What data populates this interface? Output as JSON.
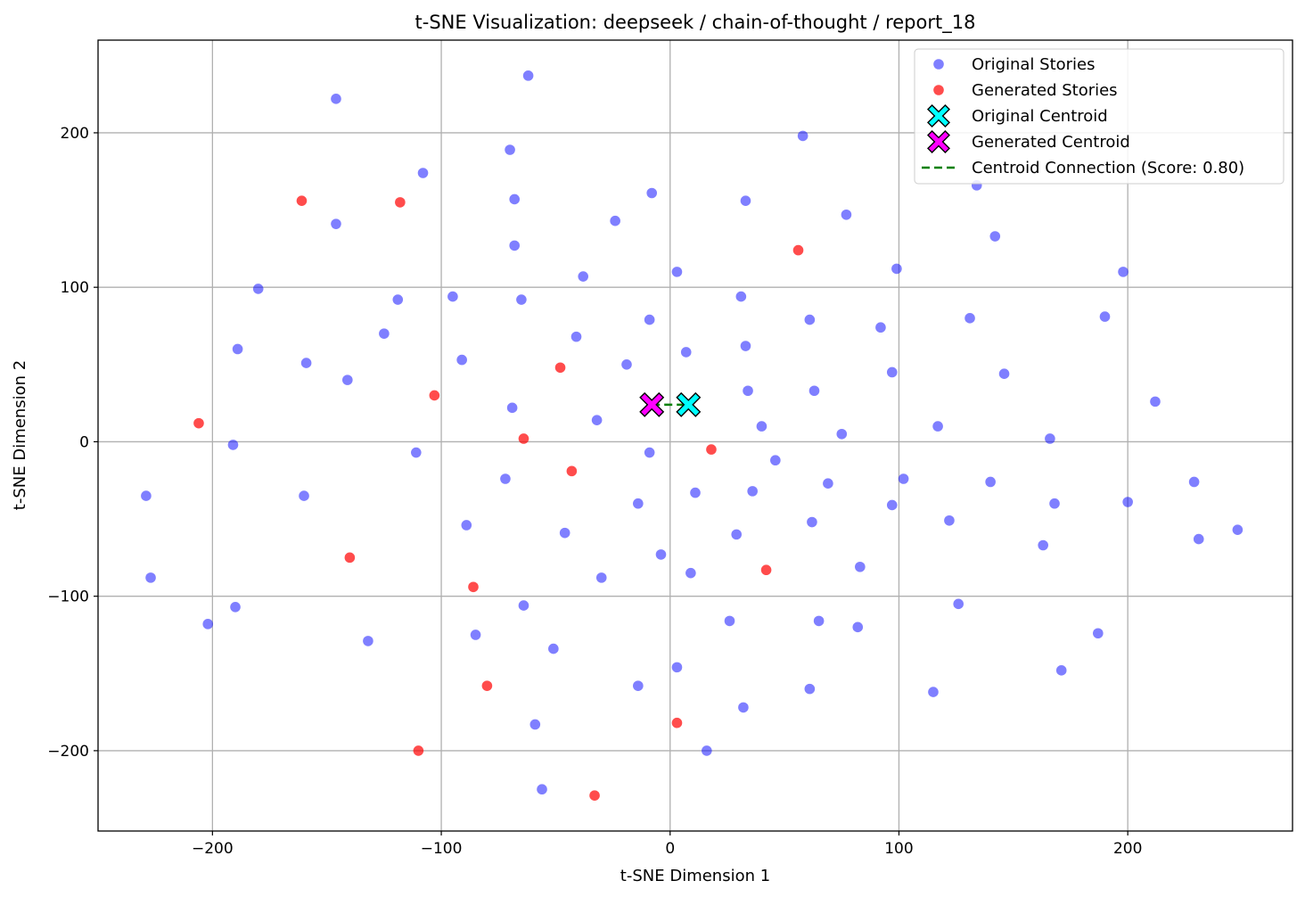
{
  "chart_data": {
    "type": "scatter",
    "title": "t-SNE Visualization: deepseek / chain-of-thought / report_18",
    "xlabel": "t-SNE Dimension 1",
    "ylabel": "t-SNE Dimension 2",
    "xlim": [
      -250,
      272
    ],
    "ylim": [
      -252,
      260
    ],
    "xticks": [
      -200,
      -100,
      0,
      100,
      200
    ],
    "yticks": [
      -200,
      -100,
      0,
      100,
      200
    ],
    "xtick_labels": [
      "−200",
      "−100",
      "0",
      "100",
      "200"
    ],
    "ytick_labels": [
      "−200",
      "−100",
      "0",
      "100",
      "200"
    ],
    "grid": true,
    "legend_position": "top-right",
    "series": [
      {
        "name": "Original Stories",
        "color": "#0000ff",
        "opacity": 0.5,
        "points": [
          [
            -62,
            237
          ],
          [
            -146,
            222
          ],
          [
            58,
            198
          ],
          [
            -108,
            174
          ],
          [
            -70,
            189
          ],
          [
            -8,
            161
          ],
          [
            33,
            156
          ],
          [
            -68,
            157
          ],
          [
            134,
            166
          ],
          [
            -146,
            141
          ],
          [
            -24,
            143
          ],
          [
            77,
            147
          ],
          [
            142,
            133
          ],
          [
            -68,
            127
          ],
          [
            3,
            110
          ],
          [
            99,
            112
          ],
          [
            198,
            110
          ],
          [
            -38,
            107
          ],
          [
            -180,
            99
          ],
          [
            -95,
            94
          ],
          [
            -119,
            92
          ],
          [
            -65,
            92
          ],
          [
            31,
            94
          ],
          [
            61,
            79
          ],
          [
            -9,
            79
          ],
          [
            131,
            80
          ],
          [
            190,
            81
          ],
          [
            92,
            74
          ],
          [
            -125,
            70
          ],
          [
            -41,
            68
          ],
          [
            -189,
            60
          ],
          [
            33,
            62
          ],
          [
            7,
            58
          ],
          [
            -159,
            51
          ],
          [
            -91,
            53
          ],
          [
            -19,
            50
          ],
          [
            97,
            45
          ],
          [
            146,
            44
          ],
          [
            -141,
            40
          ],
          [
            34,
            33
          ],
          [
            63,
            33
          ],
          [
            212,
            26
          ],
          [
            -69,
            22
          ],
          [
            -32,
            14
          ],
          [
            40,
            10
          ],
          [
            117,
            10
          ],
          [
            75,
            5
          ],
          [
            166,
            2
          ],
          [
            -191,
            -2
          ],
          [
            -111,
            -7
          ],
          [
            -9,
            -7
          ],
          [
            46,
            -12
          ],
          [
            -229,
            -35
          ],
          [
            -160,
            -35
          ],
          [
            -72,
            -24
          ],
          [
            69,
            -27
          ],
          [
            102,
            -24
          ],
          [
            140,
            -26
          ],
          [
            229,
            -26
          ],
          [
            -14,
            -40
          ],
          [
            11,
            -33
          ],
          [
            36,
            -32
          ],
          [
            97,
            -41
          ],
          [
            168,
            -40
          ],
          [
            200,
            -39
          ],
          [
            -89,
            -54
          ],
          [
            -46,
            -59
          ],
          [
            29,
            -60
          ],
          [
            62,
            -52
          ],
          [
            122,
            -51
          ],
          [
            163,
            -67
          ],
          [
            231,
            -63
          ],
          [
            248,
            -57
          ],
          [
            -4,
            -73
          ],
          [
            -227,
            -88
          ],
          [
            -30,
            -88
          ],
          [
            9,
            -85
          ],
          [
            83,
            -81
          ],
          [
            -190,
            -107
          ],
          [
            -64,
            -106
          ],
          [
            26,
            -116
          ],
          [
            65,
            -116
          ],
          [
            126,
            -105
          ],
          [
            -202,
            -118
          ],
          [
            -132,
            -129
          ],
          [
            -85,
            -125
          ],
          [
            82,
            -120
          ],
          [
            -51,
            -134
          ],
          [
            187,
            -124
          ],
          [
            3,
            -146
          ],
          [
            -14,
            -158
          ],
          [
            61,
            -160
          ],
          [
            115,
            -162
          ],
          [
            171,
            -148
          ],
          [
            -59,
            -183
          ],
          [
            32,
            -172
          ],
          [
            16,
            -200
          ],
          [
            -56,
            -225
          ]
        ]
      },
      {
        "name": "Generated Stories",
        "color": "#ff0000",
        "opacity": 0.7,
        "points": [
          [
            -161,
            156
          ],
          [
            -118,
            155
          ],
          [
            56,
            124
          ],
          [
            -48,
            48
          ],
          [
            -103,
            30
          ],
          [
            -206,
            12
          ],
          [
            -64,
            2
          ],
          [
            18,
            -5
          ],
          [
            -43,
            -19
          ],
          [
            -140,
            -75
          ],
          [
            42,
            -83
          ],
          [
            -86,
            -94
          ],
          [
            -80,
            -158
          ],
          [
            3,
            -182
          ],
          [
            -110,
            -200
          ],
          [
            -33,
            -229
          ]
        ]
      },
      {
        "name": "Original Centroid",
        "color": "#00ffff",
        "marker": "X",
        "points": [
          [
            8,
            24
          ]
        ]
      },
      {
        "name": "Generated Centroid",
        "color": "#ff00ff",
        "marker": "X",
        "points": [
          [
            -8,
            24
          ]
        ]
      }
    ],
    "connection": {
      "name": "Centroid Connection (Score: 0.80)",
      "color": "#008000",
      "style": "dashed",
      "from": [
        -8,
        24
      ],
      "to": [
        8,
        24
      ]
    }
  }
}
